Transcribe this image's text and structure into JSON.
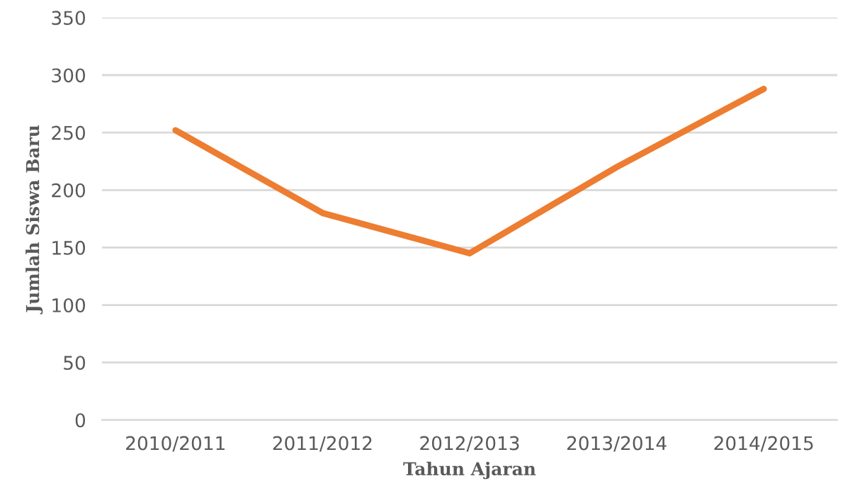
{
  "chart_data": {
    "type": "line",
    "xlabel": "Tahun Ajaran",
    "ylabel": "Jumlah Siswa Baru",
    "categories": [
      "2010/2011",
      "2011/2012",
      "2012/2013",
      "2013/2014",
      "2014/2015"
    ],
    "series": [
      {
        "color": "#ed7d31",
        "values": [
          252,
          180,
          145,
          220,
          288
        ]
      }
    ],
    "ylim": [
      0,
      350
    ],
    "yticks": [
      0,
      50,
      100,
      150,
      200,
      250,
      300,
      350
    ],
    "grid": "y",
    "marker": "none",
    "line_style": "solid",
    "legend": false
  }
}
